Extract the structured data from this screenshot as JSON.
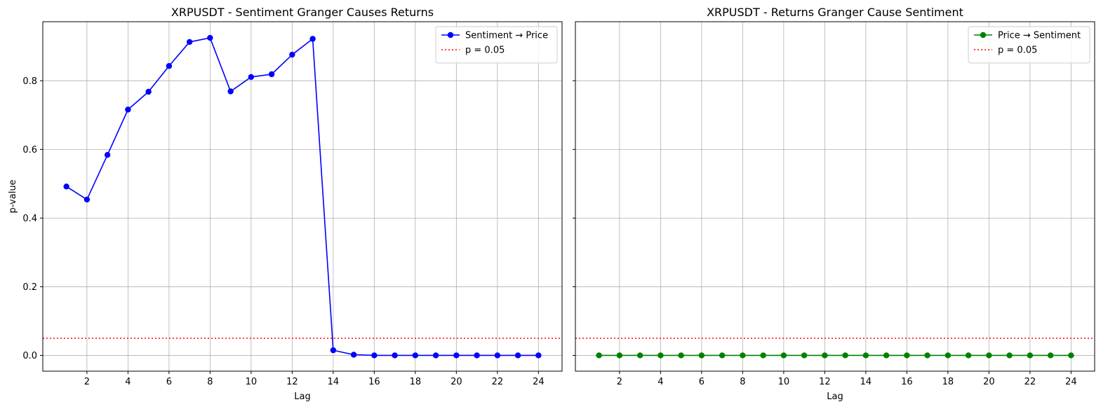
{
  "chart_data": [
    {
      "type": "line",
      "title": "XRPUSDT - Sentiment Granger Causes Returns",
      "xlabel": "Lag",
      "ylabel": "p-value",
      "xlim": [
        -0.15,
        25.15
      ],
      "ylim": [
        -0.046,
        0.972
      ],
      "xticks": [
        2,
        4,
        6,
        8,
        10,
        12,
        14,
        16,
        18,
        20,
        22,
        24
      ],
      "xtick_labels": [
        "2",
        "4",
        "6",
        "8",
        "10",
        "12",
        "14",
        "16",
        "18",
        "20",
        "22",
        "24"
      ],
      "yticks": [
        0.0,
        0.2,
        0.4,
        0.6,
        0.8
      ],
      "ytick_labels": [
        "0.0",
        "0.2",
        "0.4",
        "0.6",
        "0.8"
      ],
      "grid": true,
      "legend_position": "upper right",
      "x": [
        1,
        2,
        3,
        4,
        5,
        6,
        7,
        8,
        9,
        10,
        11,
        12,
        13,
        14,
        15,
        16,
        17,
        18,
        19,
        20,
        21,
        22,
        23,
        24
      ],
      "series": [
        {
          "name": "Sentiment → Price",
          "color": "#0000ff",
          "marker": "circle",
          "values": [
            0.492,
            0.454,
            0.584,
            0.716,
            0.768,
            0.843,
            0.913,
            0.925,
            0.769,
            0.811,
            0.819,
            0.876,
            0.922,
            0.015,
            0.002,
            0.0,
            0.0,
            0.0,
            0.0,
            0.0,
            0.0,
            0.0,
            0.0,
            0.0
          ]
        }
      ],
      "reference_line": {
        "label": "p = 0.05",
        "y": 0.05,
        "color": "#ff0000",
        "style": "dotted"
      }
    },
    {
      "type": "line",
      "title": "XRPUSDT - Returns Granger Cause Sentiment",
      "xlabel": "Lag",
      "ylabel": "",
      "xlim": [
        -0.15,
        25.15
      ],
      "ylim": [
        -0.046,
        0.972
      ],
      "xticks": [
        2,
        4,
        6,
        8,
        10,
        12,
        14,
        16,
        18,
        20,
        22,
        24
      ],
      "xtick_labels": [
        "2",
        "4",
        "6",
        "8",
        "10",
        "12",
        "14",
        "16",
        "18",
        "20",
        "22",
        "24"
      ],
      "yticks": [
        0.0,
        0.2,
        0.4,
        0.6,
        0.8
      ],
      "ytick_labels": [],
      "grid": true,
      "legend_position": "upper right",
      "x": [
        1,
        2,
        3,
        4,
        5,
        6,
        7,
        8,
        9,
        10,
        11,
        12,
        13,
        14,
        15,
        16,
        17,
        18,
        19,
        20,
        21,
        22,
        23,
        24
      ],
      "series": [
        {
          "name": "Price → Sentiment",
          "color": "#008000",
          "marker": "circle",
          "values": [
            0.0,
            0.0,
            0.0,
            0.0,
            0.0,
            0.0,
            0.0,
            0.0,
            0.0,
            0.0,
            0.0,
            0.0,
            0.0,
            0.0,
            0.0,
            0.0,
            0.0,
            0.0,
            0.0,
            0.0,
            0.0,
            0.0,
            0.0,
            0.0
          ]
        }
      ],
      "reference_line": {
        "label": "p = 0.05",
        "y": 0.05,
        "color": "#ff0000",
        "style": "dotted"
      }
    }
  ]
}
